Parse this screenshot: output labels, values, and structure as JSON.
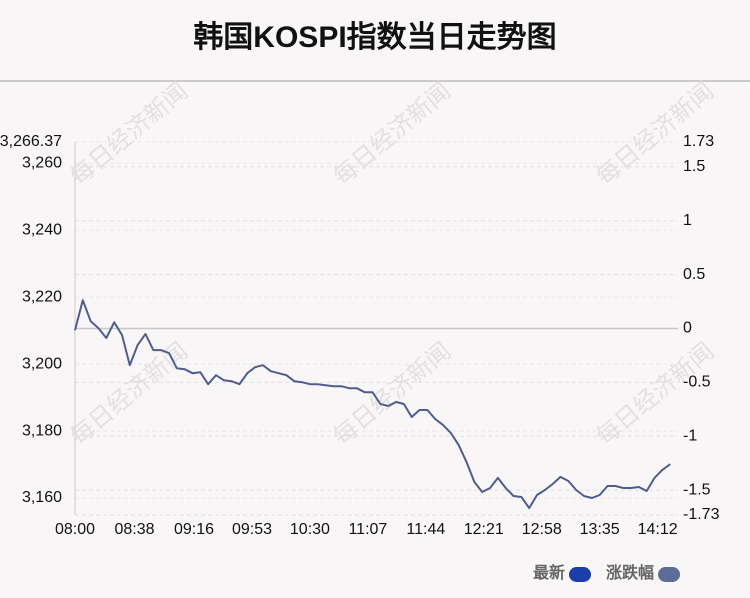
{
  "chart_data": {
    "type": "line",
    "title": "韩国KOSPI指数当日走势图",
    "watermark": "每日经济新闻",
    "x": [
      "08:00",
      "08:05",
      "08:10",
      "08:15",
      "08:20",
      "08:25",
      "08:30",
      "08:35",
      "08:40",
      "08:45",
      "08:50",
      "08:55",
      "09:00",
      "09:05",
      "09:10",
      "09:15",
      "09:20",
      "09:25",
      "09:30",
      "09:35",
      "09:40",
      "09:45",
      "09:50",
      "09:55",
      "10:00",
      "10:05",
      "10:10",
      "10:15",
      "10:20",
      "10:25",
      "10:30",
      "10:35",
      "10:40",
      "10:45",
      "10:50",
      "10:55",
      "11:00",
      "11:05",
      "11:10",
      "11:15",
      "11:20",
      "11:25",
      "11:30",
      "11:35",
      "11:40",
      "11:45",
      "11:50",
      "11:55",
      "12:00",
      "12:05",
      "12:10",
      "12:15",
      "12:20",
      "12:25",
      "12:30",
      "12:35",
      "12:40",
      "12:45",
      "12:50",
      "12:55",
      "13:00",
      "13:05",
      "13:10",
      "13:15",
      "13:20",
      "13:25",
      "13:30",
      "13:35",
      "13:40",
      "13:45",
      "13:50",
      "13:55",
      "14:00",
      "14:05",
      "14:10",
      "14:15",
      "14:20"
    ],
    "series": [
      {
        "name": "最新",
        "color": "#4d5e8e",
        "values": [
          3210.1,
          3219.1,
          3212.8,
          3210.7,
          3207.8,
          3212.5,
          3208.7,
          3199.7,
          3205.7,
          3209.0,
          3204.2,
          3204.2,
          3203.3,
          3198.8,
          3198.5,
          3197.3,
          3197.6,
          3194.0,
          3196.7,
          3195.2,
          3194.9,
          3194.0,
          3197.3,
          3199.1,
          3199.7,
          3197.9,
          3197.3,
          3196.7,
          3194.9,
          3194.6,
          3194.0,
          3194.0,
          3193.7,
          3193.4,
          3193.4,
          3192.8,
          3192.8,
          3191.6,
          3191.6,
          3188.1,
          3187.5,
          3188.7,
          3188.1,
          3184.2,
          3186.3,
          3186.3,
          3183.6,
          3181.8,
          3179.4,
          3175.8,
          3170.7,
          3164.8,
          3161.8,
          3163.0,
          3166.0,
          3163.0,
          3160.6,
          3160.3,
          3157.0,
          3160.9,
          3162.4,
          3164.2,
          3166.3,
          3165.1,
          3162.4,
          3160.6,
          3160.0,
          3160.9,
          3163.6,
          3163.6,
          3163.0,
          3163.0,
          3163.3,
          3162.1,
          3166.0,
          3168.4,
          3170.1
        ]
      }
    ],
    "legend": [
      {
        "name": "最新",
        "color": "#1a3fa8"
      },
      {
        "name": "涨跌幅",
        "color": "#5b6e9a"
      }
    ],
    "xlim": [
      "08:00",
      "14:25"
    ],
    "xticks": [
      "08:00",
      "08:38",
      "09:16",
      "09:53",
      "10:30",
      "11:07",
      "11:44",
      "12:21",
      "12:58",
      "13:35",
      "14:12"
    ],
    "ylim": [
      3154.93,
      3266.37
    ],
    "yticks": [
      {
        "value": 3160,
        "label": "3,160"
      },
      {
        "value": 3180,
        "label": "3,180"
      },
      {
        "value": 3200,
        "label": "3,200"
      },
      {
        "value": 3220,
        "label": "3,220"
      },
      {
        "value": 3240,
        "label": "3,240"
      },
      {
        "value": 3260,
        "label": "3,260"
      },
      {
        "value": 3266.37,
        "label": "3,266.37"
      }
    ],
    "y2lim": [
      -1.73,
      1.73
    ],
    "y2ticks": [
      -1.73,
      -1.5,
      -1,
      -0.5,
      0,
      0.5,
      1,
      1.5,
      1.73
    ],
    "grid": true
  }
}
